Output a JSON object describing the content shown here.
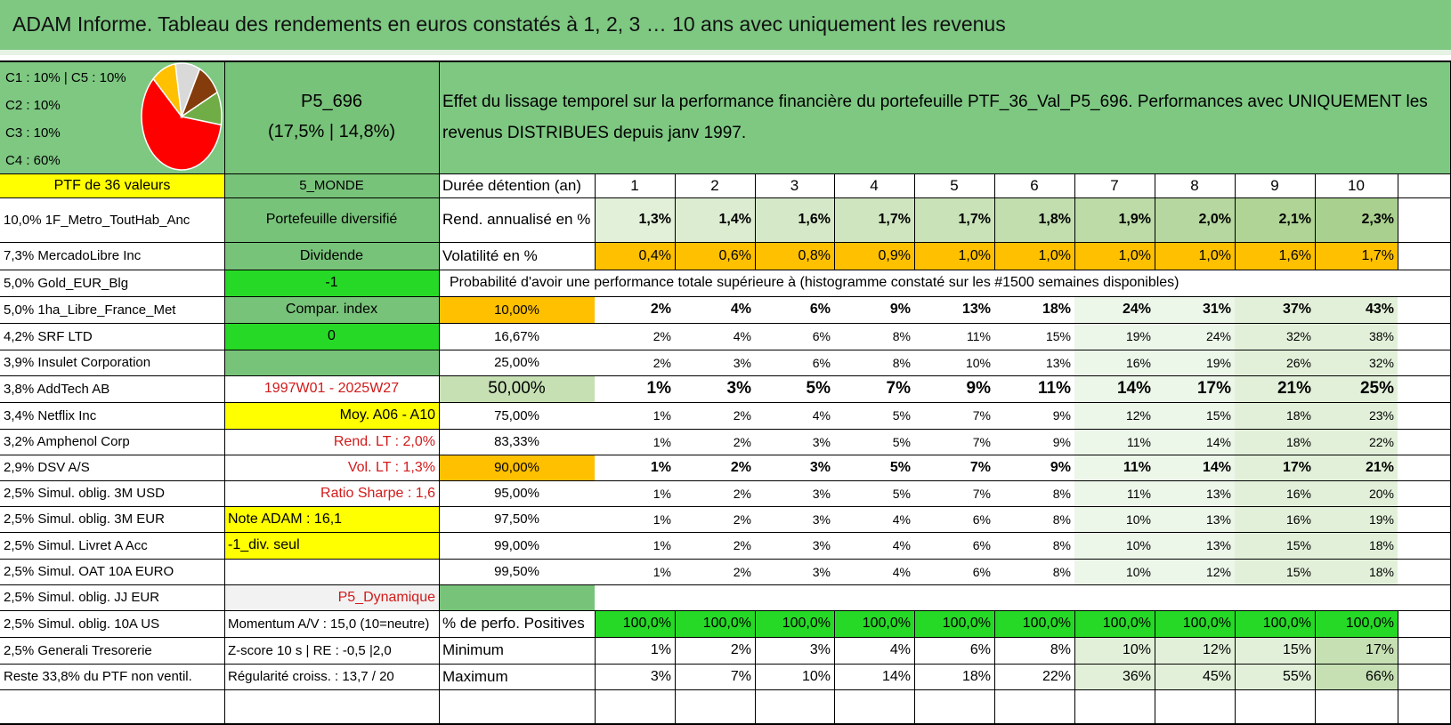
{
  "title": "ADAM Informe. Tableau des rendements en euros constatés à 1, 2, 3 … 10 ans avec uniquement les revenus",
  "colors": {
    "header_green": "#7ec882",
    "mid_green": "#78c37a",
    "yellow": "#ffff00",
    "bright_green": "#26d926",
    "orange": "#ffc000",
    "light_green": "#c6e0b4",
    "pale_green": "#e2f0d9",
    "red_text": "#d21a1a"
  },
  "allocation": {
    "lines": [
      "C1 : 10% | C5 : 10%",
      "C2 : 10%",
      "C3 : 10%",
      "C4 : 60%"
    ],
    "pie": [
      {
        "label": "C4",
        "value": 60,
        "color": "#ff0000"
      },
      {
        "label": "C1",
        "value": 10,
        "color": "#ffc000"
      },
      {
        "label": "C5",
        "value": 10,
        "color": "#d9d9d9"
      },
      {
        "label": "C2",
        "value": 10,
        "color": "#843c0c"
      },
      {
        "label": "C3",
        "value": 10,
        "color": "#70ad47"
      }
    ]
  },
  "portfolio": {
    "code": "P5_696",
    "perf": "(17,5% | 14,8%)",
    "description": "Effet du lissage temporel sur la performance financière du portefeuille PTF_36_Val_P5_696. Performances avec UNIQUEMENT les revenus DISTRIBUES depuis janv 1997."
  },
  "header_row": {
    "ptf_label": "PTF de 36 valeurs",
    "zone": "5_MONDE",
    "duration_label": "Durée détention (an)",
    "years": [
      "1",
      "2",
      "3",
      "4",
      "5",
      "6",
      "7",
      "8",
      "9",
      "10"
    ]
  },
  "holdings": [
    "10,0% 1F_Metro_ToutHab_Anc",
    "7,3% MercadoLibre Inc",
    "5,0% Gold_EUR_Blg",
    "5,0% 1ha_Libre_France_Met",
    "4,2% SRF LTD",
    "3,9% Insulet Corporation",
    "3,8% AddTech AB",
    "3,4% Netflix Inc",
    "3,2% Amphenol Corp",
    "2,9% DSV A/S",
    "2,5% Simul. oblig. 3M USD",
    "2,5% Simul. oblig. 3M EUR",
    "2,5% Simul. Livret A Acc",
    "2,5% Simul. OAT 10A EURO",
    "2,5% Simul. oblig. JJ EUR",
    "2,5% Simul. oblig. 10A US",
    "2,5% Generali Tresorerie",
    "Reste 33,8% du PTF non ventil."
  ],
  "info_col": [
    "Portefeuille diversifié",
    "Dividende",
    "-1",
    "Compar. index",
    "0",
    "",
    "1997W01 - 2025W27",
    "Moy. A06 - A10",
    "Rend. LT : 2,0%",
    "Vol. LT : 1,3%",
    "Ratio Sharpe : 1,6",
    "Note ADAM : 16,1",
    "-1_div. seul",
    "",
    "P5_Dynamique",
    "Momentum A/V : 15,0 (10=neutre)",
    "Z-score 10 s | RE : -0,5 |2,0",
    "Régularité croiss. : 13,7 / 20"
  ],
  "rend": {
    "label": "Rend. annualisé en %",
    "values": [
      "1,3%",
      "1,4%",
      "1,6%",
      "1,7%",
      "1,7%",
      "1,8%",
      "1,9%",
      "2,0%",
      "2,1%",
      "2,3%"
    ]
  },
  "vol": {
    "label": "Volatilité en %",
    "values": [
      "0,4%",
      "0,6%",
      "0,8%",
      "0,9%",
      "1,0%",
      "1,0%",
      "1,0%",
      "1,0%",
      "1,6%",
      "1,7%"
    ]
  },
  "proba_title": "Probabilité d'avoir une performance totale supérieure à (histogramme constaté sur les #1500 semaines disponibles)",
  "proba_rows": [
    {
      "pct": "10,00%",
      "values": [
        "2%",
        "4%",
        "6%",
        "9%",
        "13%",
        "18%",
        "24%",
        "31%",
        "37%",
        "43%"
      ]
    },
    {
      "pct": "16,67%",
      "values": [
        "2%",
        "4%",
        "6%",
        "8%",
        "11%",
        "15%",
        "19%",
        "24%",
        "32%",
        "38%"
      ]
    },
    {
      "pct": "25,00%",
      "values": [
        "2%",
        "3%",
        "6%",
        "8%",
        "10%",
        "13%",
        "16%",
        "19%",
        "26%",
        "32%"
      ]
    },
    {
      "pct": "50,00%",
      "values": [
        "1%",
        "3%",
        "5%",
        "7%",
        "9%",
        "11%",
        "14%",
        "17%",
        "21%",
        "25%"
      ]
    },
    {
      "pct": "75,00%",
      "values": [
        "1%",
        "2%",
        "4%",
        "5%",
        "7%",
        "9%",
        "12%",
        "15%",
        "18%",
        "23%"
      ]
    },
    {
      "pct": "83,33%",
      "values": [
        "1%",
        "2%",
        "3%",
        "5%",
        "7%",
        "9%",
        "11%",
        "14%",
        "18%",
        "22%"
      ]
    },
    {
      "pct": "90,00%",
      "values": [
        "1%",
        "2%",
        "3%",
        "5%",
        "7%",
        "9%",
        "11%",
        "14%",
        "17%",
        "21%"
      ]
    },
    {
      "pct": "95,00%",
      "values": [
        "1%",
        "2%",
        "3%",
        "5%",
        "7%",
        "8%",
        "11%",
        "13%",
        "16%",
        "20%"
      ]
    },
    {
      "pct": "97,50%",
      "values": [
        "1%",
        "2%",
        "3%",
        "4%",
        "6%",
        "8%",
        "10%",
        "13%",
        "16%",
        "19%"
      ]
    },
    {
      "pct": "99,00%",
      "values": [
        "1%",
        "2%",
        "3%",
        "4%",
        "6%",
        "8%",
        "10%",
        "13%",
        "15%",
        "18%"
      ]
    },
    {
      "pct": "99,50%",
      "values": [
        "1%",
        "2%",
        "3%",
        "4%",
        "6%",
        "8%",
        "10%",
        "12%",
        "15%",
        "18%"
      ]
    }
  ],
  "stats": [
    {
      "label": "% de perfo. Positives",
      "values": [
        "100,0%",
        "100,0%",
        "100,0%",
        "100,0%",
        "100,0%",
        "100,0%",
        "100,0%",
        "100,0%",
        "100,0%",
        "100,0%"
      ]
    },
    {
      "label": "Minimum",
      "values": [
        "1%",
        "2%",
        "3%",
        "4%",
        "6%",
        "8%",
        "10%",
        "12%",
        "15%",
        "17%"
      ]
    },
    {
      "label": "Maximum",
      "values": [
        "3%",
        "7%",
        "10%",
        "14%",
        "18%",
        "22%",
        "36%",
        "45%",
        "55%",
        "66%"
      ]
    }
  ]
}
